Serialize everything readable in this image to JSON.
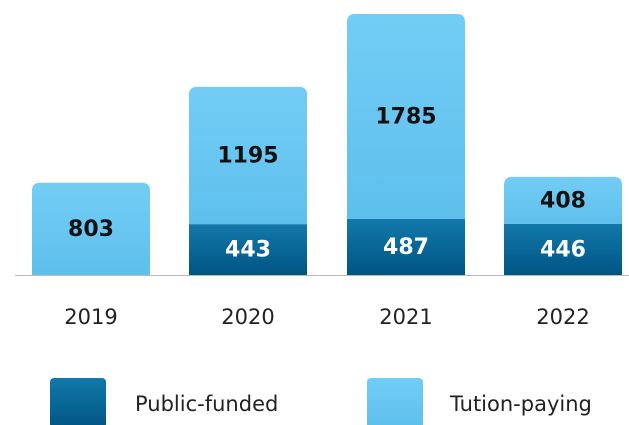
{
  "chart_data": {
    "type": "stacked_bar",
    "categories": [
      "2019",
      "2020",
      "2021",
      "2022"
    ],
    "series": [
      {
        "name": "Public-funded",
        "color": "#0a6a9a",
        "values": [
          null,
          443,
          487,
          446
        ]
      },
      {
        "name": "Tution-paying",
        "color": "#6ac7f2",
        "values": [
          803,
          1195,
          1785,
          408
        ]
      }
    ]
  }
}
